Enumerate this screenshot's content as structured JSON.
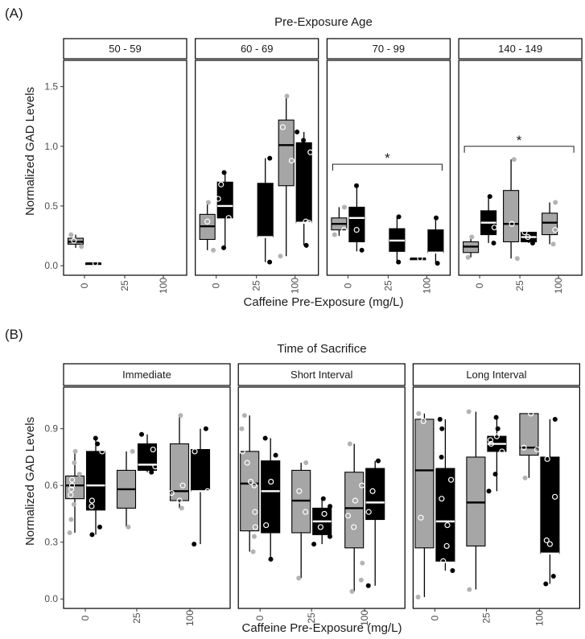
{
  "figure": {
    "panel_a_letter": "(A)",
    "panel_b_letter": "(B)",
    "panel_a_title": "Pre-Exposure Age",
    "panel_b_title": "Time of Sacrifice",
    "xlabel": "Caffeine Pre-Exposure (mg/L)",
    "ylabel": "Normalized GAD Levels",
    "colors": {
      "group_1_fill": "#a6a6a6",
      "group_2_fill": "#000000",
      "point_light": "#b3b3b3",
      "point_white": "#ffffff",
      "point_dark": "#000000",
      "frame": "#000000"
    }
  },
  "chart_data": [
    {
      "type": "box",
      "title": "Pre-Exposure Age",
      "xlabel": "Caffeine Pre-Exposure (mg/L)",
      "ylabel": "Normalized GAD Levels",
      "categories": [
        "0",
        "25",
        "100"
      ],
      "ylim": [
        -0.08,
        1.72
      ],
      "yticks": [
        "0.0",
        "0.5",
        "1.0",
        "1.5"
      ],
      "grid": false,
      "facets": [
        {
          "label": "50 - 59",
          "significance": null,
          "boxes": [
            {
              "category": "0",
              "group": 1,
              "min": 0.15,
              "q1": 0.18,
              "median": 0.2,
              "q3": 0.23,
              "max": 0.26,
              "points": [
                0.16,
                0.21,
                0.26
              ]
            },
            {
              "category": "0",
              "group": 2,
              "min": 0.02,
              "q1": 0.02,
              "median": 0.02,
              "q3": 0.02,
              "max": 0.02,
              "points": [
                0.02
              ]
            }
          ]
        },
        {
          "label": "60 - 69",
          "significance": null,
          "boxes": [
            {
              "category": "0",
              "group": 1,
              "min": 0.13,
              "q1": 0.22,
              "median": 0.33,
              "q3": 0.43,
              "max": 0.53,
              "points": [
                0.13,
                0.37,
                0.53
              ]
            },
            {
              "category": "0",
              "group": 2,
              "min": 0.15,
              "q1": 0.4,
              "median": 0.5,
              "q3": 0.7,
              "max": 0.78,
              "points": [
                0.15,
                0.4,
                0.56,
                0.68,
                0.78
              ]
            },
            {
              "category": "25",
              "group": 2,
              "min": 0.03,
              "q1": 0.24,
              "median": 0.24,
              "q3": 0.69,
              "max": 0.9,
              "points": [
                0.03,
                0.9
              ]
            },
            {
              "category": "100",
              "group": 1,
              "min": 0.08,
              "q1": 0.67,
              "median": 1.01,
              "q3": 1.22,
              "max": 1.42,
              "points": [
                0.08,
                0.88,
                1.16,
                1.42
              ]
            },
            {
              "category": "100",
              "group": 2,
              "min": 0.17,
              "q1": 0.36,
              "median": 0.36,
              "q3": 1.03,
              "max": 1.12,
              "points": [
                0.17,
                0.36,
                0.37,
                0.95,
                1.05,
                1.12
              ]
            }
          ]
        },
        {
          "label": "70 - 99",
          "significance": {
            "symbol": "*",
            "from": "0",
            "to": "100",
            "y": 0.85
          },
          "boxes": [
            {
              "category": "0",
              "group": 1,
              "min": 0.25,
              "q1": 0.3,
              "median": 0.35,
              "q3": 0.4,
              "max": 0.49,
              "points": [
                0.26,
                0.3,
                0.49
              ]
            },
            {
              "category": "0",
              "group": 2,
              "min": 0.12,
              "q1": 0.2,
              "median": 0.4,
              "q3": 0.49,
              "max": 0.67,
              "points": [
                0.13,
                0.3,
                0.67
              ]
            },
            {
              "category": "25",
              "group": 2,
              "min": 0.03,
              "q1": 0.12,
              "median": 0.21,
              "q3": 0.31,
              "max": 0.41,
              "points": [
                0.03,
                0.41
              ]
            },
            {
              "category": "100",
              "group": 1,
              "min": 0.06,
              "q1": 0.06,
              "median": 0.06,
              "q3": 0.06,
              "max": 0.06,
              "points": [
                0.06
              ]
            },
            {
              "category": "100",
              "group": 2,
              "min": 0.02,
              "q1": 0.11,
              "median": 0.11,
              "q3": 0.3,
              "max": 0.4,
              "points": [
                0.02,
                0.4
              ]
            }
          ]
        },
        {
          "label": "140 - 149",
          "significance": {
            "symbol": "*",
            "from": "0",
            "to": "100",
            "y": 1.0
          },
          "boxes": [
            {
              "category": "0",
              "group": 1,
              "min": 0.07,
              "q1": 0.11,
              "median": 0.16,
              "q3": 0.2,
              "max": 0.24,
              "points": [
                0.07,
                0.24
              ]
            },
            {
              "category": "0",
              "group": 2,
              "min": 0.19,
              "q1": 0.26,
              "median": 0.36,
              "q3": 0.46,
              "max": 0.58,
              "points": [
                0.19,
                0.32,
                0.58
              ]
            },
            {
              "category": "25",
              "group": 1,
              "min": 0.06,
              "q1": 0.2,
              "median": 0.35,
              "q3": 0.63,
              "max": 0.89,
              "points": [
                0.06,
                0.35,
                0.89
              ]
            },
            {
              "category": "25",
              "group": 2,
              "min": 0.19,
              "q1": 0.2,
              "median": 0.24,
              "q3": 0.28,
              "max": 0.28,
              "points": [
                0.19,
                0.24,
                0.28
              ]
            },
            {
              "category": "100",
              "group": 1,
              "min": 0.18,
              "q1": 0.26,
              "median": 0.36,
              "q3": 0.44,
              "max": 0.53,
              "points": [
                0.18,
                0.3,
                0.53
              ]
            }
          ]
        }
      ]
    },
    {
      "type": "box",
      "title": "Time of Sacrifice",
      "xlabel": "Caffeine Pre-Exposure (mg/L)",
      "ylabel": "Normalized GAD Levels",
      "categories": [
        "0",
        "25",
        "100"
      ],
      "ylim": [
        -0.05,
        1.12
      ],
      "yticks": [
        "0.0",
        "0.3",
        "0.6",
        "0.9"
      ],
      "grid": false,
      "facets": [
        {
          "label": "Immediate",
          "significance": null,
          "boxes": [
            {
              "category": "0",
              "group": 1,
              "min": 0.35,
              "q1": 0.53,
              "median": 0.6,
              "q3": 0.65,
              "max": 0.78,
              "points": [
                0.35,
                0.42,
                0.5,
                0.55,
                0.58,
                0.6,
                0.63,
                0.66,
                0.72,
                0.78
              ]
            },
            {
              "category": "0",
              "group": 2,
              "min": 0.34,
              "q1": 0.47,
              "median": 0.6,
              "q3": 0.78,
              "max": 0.85,
              "points": [
                0.34,
                0.38,
                0.49,
                0.52,
                0.78,
                0.82,
                0.85
              ]
            },
            {
              "category": "25",
              "group": 1,
              "min": 0.38,
              "q1": 0.48,
              "median": 0.58,
              "q3": 0.68,
              "max": 0.78,
              "points": [
                0.38,
                0.78
              ]
            },
            {
              "category": "25",
              "group": 2,
              "min": 0.67,
              "q1": 0.68,
              "median": 0.71,
              "q3": 0.82,
              "max": 0.87,
              "points": [
                0.67,
                0.7,
                0.79,
                0.87
              ]
            },
            {
              "category": "100",
              "group": 1,
              "min": 0.48,
              "q1": 0.52,
              "median": 0.57,
              "q3": 0.82,
              "max": 0.97,
              "points": [
                0.48,
                0.52,
                0.56,
                0.6,
                0.97
              ]
            },
            {
              "category": "100",
              "group": 2,
              "min": 0.29,
              "q1": 0.57,
              "median": 0.57,
              "q3": 0.79,
              "max": 0.9,
              "points": [
                0.29,
                0.57,
                0.78,
                0.9
              ]
            }
          ]
        },
        {
          "label": "Short Interval",
          "significance": null,
          "boxes": [
            {
              "category": "0",
              "group": 1,
              "min": 0.25,
              "q1": 0.36,
              "median": 0.61,
              "q3": 0.78,
              "max": 0.97,
              "points": [
                0.25,
                0.33,
                0.38,
                0.46,
                0.6,
                0.62,
                0.72,
                0.78,
                0.9,
                0.97
              ]
            },
            {
              "category": "0",
              "group": 2,
              "min": 0.21,
              "q1": 0.35,
              "median": 0.57,
              "q3": 0.73,
              "max": 0.85,
              "points": [
                0.21,
                0.39,
                0.62,
                0.76,
                0.85
              ]
            },
            {
              "category": "25",
              "group": 1,
              "min": 0.11,
              "q1": 0.35,
              "median": 0.52,
              "q3": 0.68,
              "max": 0.72,
              "points": [
                0.11,
                0.46,
                0.57,
                0.72
              ]
            },
            {
              "category": "25",
              "group": 2,
              "min": 0.29,
              "q1": 0.34,
              "median": 0.41,
              "q3": 0.48,
              "max": 0.53,
              "points": [
                0.29,
                0.33,
                0.38,
                0.45,
                0.49,
                0.53
              ]
            },
            {
              "category": "100",
              "group": 1,
              "min": 0.04,
              "q1": 0.27,
              "median": 0.48,
              "q3": 0.67,
              "max": 0.82,
              "points": [
                0.04,
                0.1,
                0.19,
                0.38,
                0.44,
                0.52,
                0.6,
                0.82
              ]
            },
            {
              "category": "100",
              "group": 2,
              "min": 0.07,
              "q1": 0.42,
              "median": 0.51,
              "q3": 0.69,
              "max": 0.73,
              "points": [
                0.07,
                0.46,
                0.57,
                0.73
              ]
            }
          ]
        },
        {
          "label": "Long Interval",
          "significance": null,
          "boxes": [
            {
              "category": "0",
              "group": 1,
              "min": 0.01,
              "q1": 0.27,
              "median": 0.68,
              "q3": 0.95,
              "max": 0.98,
              "points": [
                0.01,
                0.43,
                0.94,
                0.98
              ]
            },
            {
              "category": "0",
              "group": 2,
              "min": 0.15,
              "q1": 0.2,
              "median": 0.41,
              "q3": 0.69,
              "max": 0.95,
              "points": [
                0.15,
                0.2,
                0.28,
                0.39,
                0.53,
                0.63,
                0.75,
                0.9,
                0.95
              ]
            },
            {
              "category": "25",
              "group": 1,
              "min": 0.05,
              "q1": 0.28,
              "median": 0.51,
              "q3": 0.75,
              "max": 0.99,
              "points": [
                0.05,
                0.99
              ]
            },
            {
              "category": "25",
              "group": 2,
              "min": 0.57,
              "q1": 0.78,
              "median": 0.82,
              "q3": 0.86,
              "max": 0.96,
              "points": [
                0.57,
                0.66,
                0.78,
                0.82,
                0.84,
                0.86,
                0.9,
                0.96
              ]
            },
            {
              "category": "100",
              "group": 1,
              "min": 0.64,
              "q1": 0.76,
              "median": 0.8,
              "q3": 0.98,
              "max": 0.98,
              "points": [
                0.64,
                0.79,
                0.8,
                0.98
              ]
            },
            {
              "category": "100",
              "group": 2,
              "min": 0.08,
              "q1": 0.24,
              "median": 0.24,
              "q3": 0.75,
              "max": 0.95,
              "points": [
                0.08,
                0.12,
                0.29,
                0.31,
                0.54,
                0.74,
                0.95
              ]
            }
          ]
        }
      ]
    }
  ]
}
